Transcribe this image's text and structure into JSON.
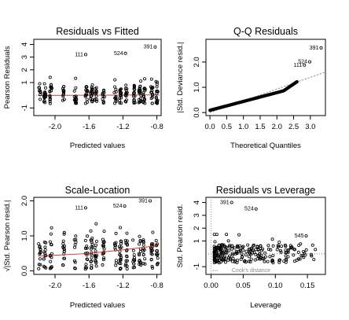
{
  "chart_data": [
    {
      "type": "scatter",
      "title": "Residuals vs Fitted",
      "xlabel": "Predicted values",
      "ylabel": "Pearson Residuals",
      "xlim": [
        -2.25,
        -0.75
      ],
      "ylim": [
        -1.6,
        4.4
      ],
      "x_ticks": [
        -2.0,
        -1.6,
        -1.2,
        -0.8
      ],
      "x_tick_labels": [
        "-2.0",
        "-1.6",
        "-1.2",
        "-0.8"
      ],
      "y_ticks": [
        -1,
        1,
        2,
        3,
        4
      ],
      "y_tick_labels": [
        "-1",
        "1",
        "2",
        "3",
        "4"
      ],
      "reference_line": {
        "y": 0,
        "style": "dotted",
        "color": "#808080"
      },
      "smooth_color": "#d62728",
      "grid": false,
      "clusters_x": [
        -2.18,
        -2.12,
        -2.05,
        -1.9,
        -1.76,
        -1.63,
        -1.57,
        -1.52,
        -1.43,
        -1.29,
        -1.23,
        -1.16,
        -1.07,
        -1.0,
        -0.95,
        -0.86,
        -0.8
      ],
      "annotated_points": [
        {
          "label": "391",
          "x": -0.82,
          "y": 3.8
        },
        {
          "label": "524",
          "x": -1.17,
          "y": 3.3
        },
        {
          "label": "111",
          "x": -1.64,
          "y": 3.2
        }
      ]
    },
    {
      "type": "scatter",
      "title": "Q-Q Residuals",
      "xlabel": "Theoretical Quantiles",
      "ylabel": "|Std. Deviance resid.|",
      "xlim": [
        -0.12,
        3.45
      ],
      "ylim": [
        -0.12,
        2.9
      ],
      "x_ticks": [
        0.0,
        0.5,
        1.0,
        1.5,
        2.0,
        2.5,
        3.0
      ],
      "x_tick_labels": [
        "0.0",
        "0.5",
        "1.0",
        "1.5",
        "2.0",
        "2.5",
        "3.0"
      ],
      "y_ticks": [
        0.0,
        1.0,
        2.0
      ],
      "y_tick_labels": [
        "0.0",
        "1.0",
        "2.0"
      ],
      "reference_line": {
        "slope": 0.465,
        "intercept": 0,
        "style": "dotted",
        "color": "#808080"
      },
      "grid": false,
      "annotated_points": [
        {
          "label": "391",
          "x": 3.32,
          "y": 2.56
        },
        {
          "label": "524",
          "x": 2.98,
          "y": 2.01
        },
        {
          "label": "111",
          "x": 2.82,
          "y": 1.88
        }
      ]
    },
    {
      "type": "scatter",
      "title": "Scale-Location",
      "xlabel": "Predicted values",
      "ylabel": "√|Std. Pearson resid.|",
      "xlim": [
        -2.25,
        -0.75
      ],
      "ylim": [
        -0.1,
        2.1
      ],
      "x_ticks": [
        -2.0,
        -1.6,
        -1.2,
        -0.8
      ],
      "x_tick_labels": [
        "-2.0",
        "-1.6",
        "-1.2",
        "-0.8"
      ],
      "y_ticks": [
        0.0,
        1.0,
        2.0
      ],
      "y_tick_labels": [
        "0.0",
        "1.0",
        "2.0"
      ],
      "smooth_line": {
        "x": [
          -2.2,
          -1.6,
          -1.2,
          -0.8
        ],
        "y": [
          0.42,
          0.5,
          0.6,
          0.72
        ],
        "color": "#d62728"
      },
      "grid": false,
      "clusters_x": [
        -2.18,
        -2.12,
        -2.05,
        -1.9,
        -1.76,
        -1.63,
        -1.57,
        -1.52,
        -1.43,
        -1.29,
        -1.23,
        -1.16,
        -1.07,
        -1.0,
        -0.95,
        -0.86,
        -0.8
      ],
      "annotated_points": [
        {
          "label": "391",
          "x": -0.88,
          "y": 2.0
        },
        {
          "label": "524",
          "x": -1.18,
          "y": 1.85
        },
        {
          "label": "111",
          "x": -1.64,
          "y": 1.8
        }
      ]
    },
    {
      "type": "scatter",
      "title": "Residuals vs Leverage",
      "xlabel": "Leverage",
      "ylabel": "Std. Pearson resid.",
      "xlim": [
        -0.008,
        0.178
      ],
      "ylim": [
        -1.6,
        4.4
      ],
      "x_ticks": [
        0.0,
        0.05,
        0.1,
        0.15
      ],
      "x_tick_labels": [
        "0.00",
        "0.05",
        "0.10",
        "0.15"
      ],
      "y_ticks": [
        -1,
        1,
        2,
        3,
        4
      ],
      "y_tick_labels": [
        "-1",
        "1",
        "2",
        "3",
        "4"
      ],
      "reference_line": {
        "y": 0,
        "style": "dotted",
        "color": "#808080"
      },
      "legend_text": "Cook's distance",
      "grid": false,
      "annotated_points": [
        {
          "label": "391",
          "x": 0.032,
          "y": 4.0
        },
        {
          "label": "524",
          "x": 0.07,
          "y": 3.5
        },
        {
          "label": "545",
          "x": 0.148,
          "y": 1.4
        }
      ]
    }
  ]
}
